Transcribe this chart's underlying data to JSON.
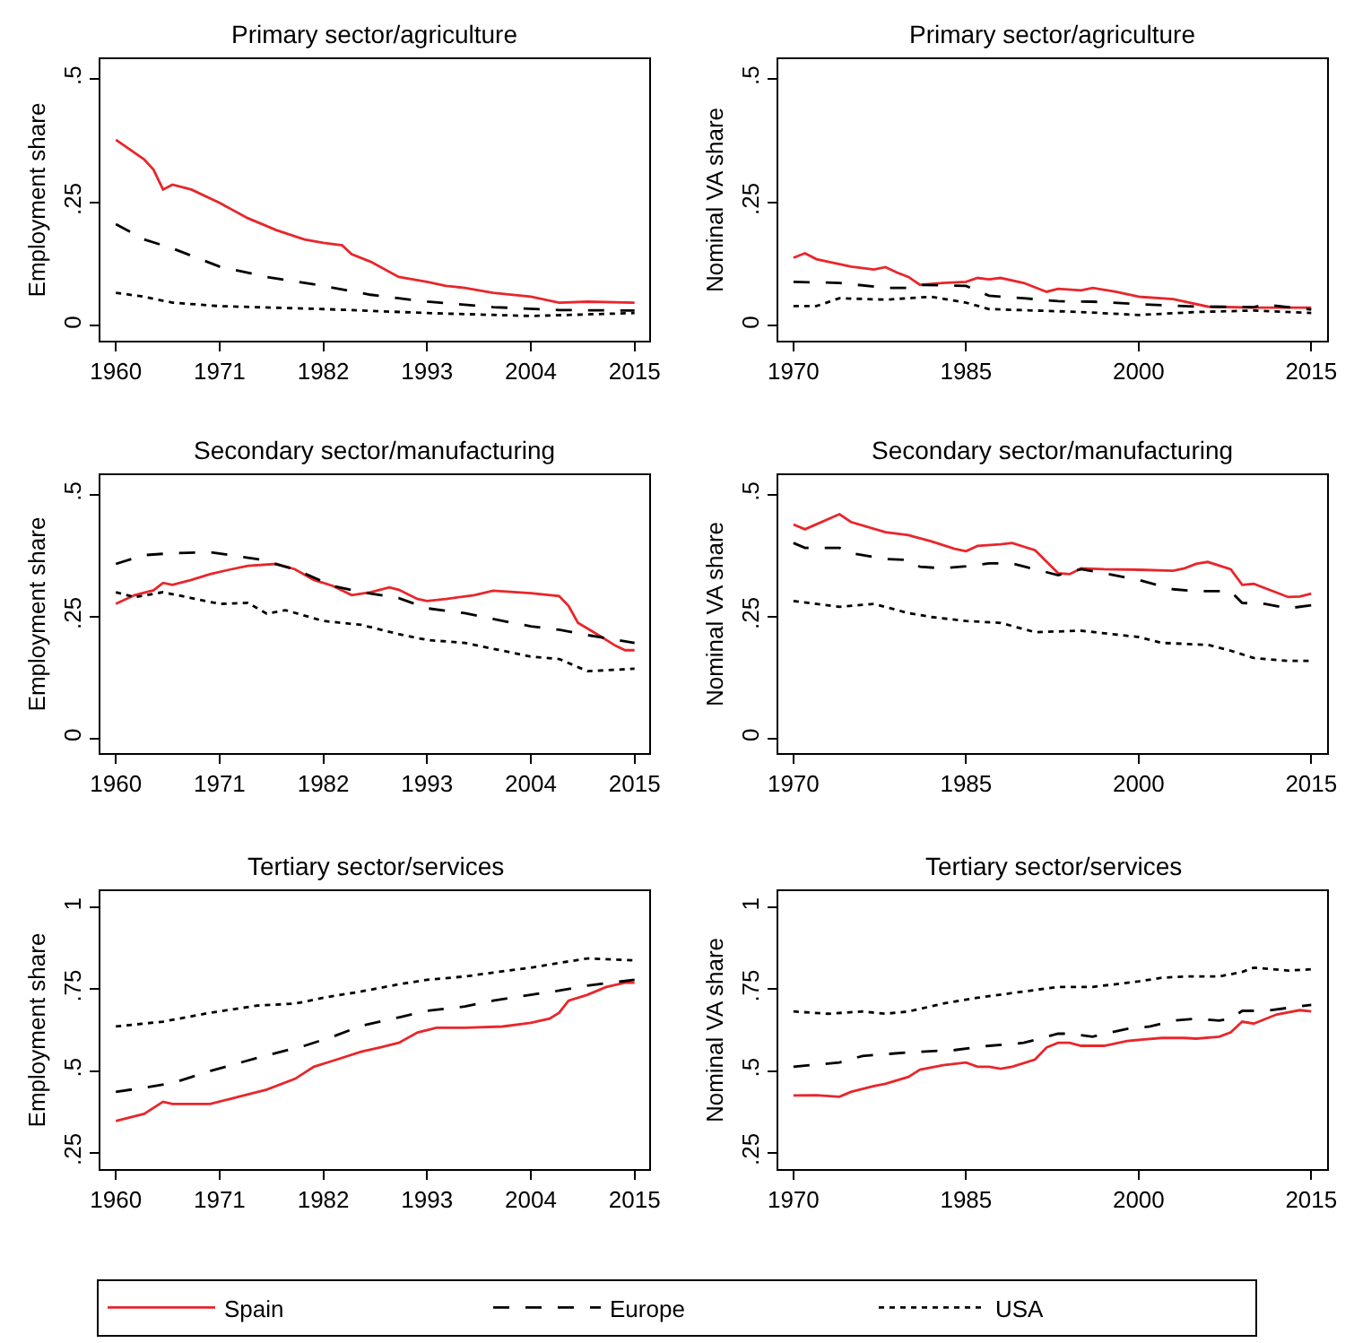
{
  "chart_data": [
    {
      "type": "line",
      "title": "Primary sector/agriculture",
      "ylabel": "Employment share",
      "xlim": [
        1958.4,
        2016.6
      ],
      "xticks": [
        1960,
        1971,
        1982,
        1993,
        2004,
        2015
      ],
      "ylim": [
        -0.03,
        0.54
      ],
      "yticks": [
        0,
        {
          "value": 0.25,
          "label": ".25"
        },
        {
          "value": 0.5,
          "label": ".5"
        }
      ],
      "legend": "bottom",
      "marker": "none",
      "series": [
        {
          "name": "Spain",
          "color": "#e8262b",
          "line_style": "solid",
          "x": [
            1960,
            1963,
            1964,
            1965,
            1966,
            1968,
            1971,
            1974,
            1977,
            1980,
            1982,
            1984,
            1985,
            1987,
            1990,
            1993,
            1995,
            1997,
            2000,
            2004,
            2007,
            2010,
            2015
          ],
          "values": [
            0.377,
            0.337,
            0.316,
            0.276,
            0.286,
            0.276,
            0.249,
            0.218,
            0.194,
            0.175,
            0.168,
            0.163,
            0.145,
            0.13,
            0.099,
            0.089,
            0.081,
            0.077,
            0.067,
            0.059,
            0.047,
            0.049,
            0.047
          ]
        },
        {
          "name": "Europe",
          "color": "#000000",
          "line_style": "dashed",
          "x": [
            1960,
            1963,
            1966,
            1971,
            1976,
            1982,
            1987,
            1993,
            2000,
            2007,
            2015
          ],
          "values": [
            0.206,
            0.175,
            0.157,
            0.12,
            0.099,
            0.081,
            0.063,
            0.049,
            0.038,
            0.032,
            0.031
          ]
        },
        {
          "name": "USA",
          "color": "#000000",
          "line_style": "dotted",
          "x": [
            1960,
            1963,
            1966,
            1971,
            1982,
            1993,
            2004,
            2015
          ],
          "values": [
            0.067,
            0.059,
            0.047,
            0.04,
            0.034,
            0.026,
            0.02,
            0.026
          ]
        }
      ]
    },
    {
      "type": "line",
      "title": "Primary sector/agriculture",
      "ylabel": "Nominal VA share",
      "xlim": [
        1968.7,
        2016.4
      ],
      "xticks": [
        1970,
        1985,
        2000,
        2015
      ],
      "ylim": [
        -0.03,
        0.54
      ],
      "yticks": [
        0,
        {
          "value": 0.25,
          "label": ".25"
        },
        {
          "value": 0.5,
          "label": ".5"
        }
      ],
      "marker": "none",
      "series": [
        {
          "color": "#e8262b",
          "line_style": "solid",
          "x": [
            1970,
            1971,
            1972,
            1975,
            1977,
            1978,
            1979,
            1980,
            1981,
            1983,
            1985,
            1986,
            1987,
            1988,
            1990,
            1992,
            1993,
            1995,
            1996,
            1998,
            2000,
            2003,
            2006,
            2010,
            2015
          ],
          "values": [
            0.138,
            0.147,
            0.135,
            0.12,
            0.114,
            0.119,
            0.108,
            0.099,
            0.083,
            0.087,
            0.089,
            0.097,
            0.094,
            0.097,
            0.087,
            0.069,
            0.075,
            0.072,
            0.077,
            0.069,
            0.059,
            0.054,
            0.039,
            0.037,
            0.037
          ]
        },
        {
          "color": "#000000",
          "line_style": "dashed",
          "x": [
            1970,
            1974,
            1978,
            1980,
            1981,
            1985,
            1987,
            1990,
            1993,
            1996,
            2000,
            2005,
            2010,
            2011,
            2015
          ],
          "values": [
            0.089,
            0.087,
            0.077,
            0.077,
            0.083,
            0.081,
            0.061,
            0.056,
            0.05,
            0.049,
            0.044,
            0.039,
            0.038,
            0.043,
            0.033
          ]
        },
        {
          "color": "#000000",
          "line_style": "dotted",
          "x": [
            1970,
            1972,
            1974,
            1978,
            1982,
            1985,
            1987,
            1995,
            2000,
            2005,
            2010,
            2015
          ],
          "values": [
            0.04,
            0.04,
            0.056,
            0.053,
            0.059,
            0.047,
            0.034,
            0.028,
            0.022,
            0.028,
            0.031,
            0.026
          ]
        }
      ]
    },
    {
      "type": "line",
      "title": "Secondary sector/manufacturing",
      "ylabel": "Employment share",
      "xlim": [
        1958.4,
        2016.6
      ],
      "xticks": [
        1960,
        1971,
        1982,
        1993,
        2004,
        2015
      ],
      "ylim": [
        -0.03,
        0.54
      ],
      "yticks": [
        0,
        {
          "value": 0.25,
          "label": ".25"
        },
        {
          "value": 0.5,
          "label": ".5"
        }
      ],
      "marker": "none",
      "series": [
        {
          "color": "#e8262b",
          "line_style": "solid",
          "x": [
            1960,
            1962,
            1964,
            1965,
            1966,
            1968,
            1970,
            1972,
            1974,
            1977,
            1979,
            1981,
            1983,
            1985,
            1987,
            1989,
            1990,
            1992,
            1993,
            1995,
            1998,
            2000,
            2004,
            2007,
            2008,
            2009,
            2011,
            2013,
            2014,
            2015
          ],
          "values": [
            0.276,
            0.294,
            0.304,
            0.319,
            0.315,
            0.325,
            0.337,
            0.346,
            0.354,
            0.358,
            0.347,
            0.325,
            0.313,
            0.294,
            0.3,
            0.31,
            0.305,
            0.286,
            0.282,
            0.286,
            0.294,
            0.303,
            0.298,
            0.292,
            0.272,
            0.237,
            0.214,
            0.19,
            0.181,
            0.181
          ]
        },
        {
          "color": "#000000",
          "line_style": "dashed",
          "x": [
            1960,
            1963,
            1966,
            1970,
            1975,
            1979,
            1983,
            1986,
            1990,
            1993,
            1997,
            2000,
            2004,
            2007,
            2010,
            2015
          ],
          "values": [
            0.358,
            0.376,
            0.38,
            0.382,
            0.368,
            0.347,
            0.313,
            0.3,
            0.288,
            0.267,
            0.257,
            0.245,
            0.23,
            0.223,
            0.212,
            0.196
          ]
        },
        {
          "color": "#000000",
          "line_style": "dotted",
          "x": [
            1960,
            1962,
            1965,
            1968,
            1971,
            1974,
            1976,
            1978,
            1982,
            1986,
            1990,
            1993,
            1997,
            2000,
            2004,
            2007,
            2010,
            2015
          ],
          "values": [
            0.3,
            0.29,
            0.3,
            0.288,
            0.276,
            0.278,
            0.256,
            0.263,
            0.241,
            0.233,
            0.214,
            0.202,
            0.196,
            0.184,
            0.168,
            0.163,
            0.138,
            0.143
          ]
        }
      ]
    },
    {
      "type": "line",
      "title": "Secondary sector/manufacturing",
      "ylabel": "Nominal VA share",
      "xlim": [
        1968.7,
        2016.4
      ],
      "xticks": [
        1970,
        1985,
        2000,
        2015
      ],
      "ylim": [
        -0.03,
        0.54
      ],
      "yticks": [
        0,
        {
          "value": 0.25,
          "label": ".25"
        },
        {
          "value": 0.5,
          "label": ".5"
        }
      ],
      "marker": "none",
      "series": [
        {
          "color": "#e8262b",
          "line_style": "solid",
          "x": [
            1970,
            1971,
            1974,
            1975,
            1978,
            1980,
            1982,
            1984,
            1985,
            1986,
            1988,
            1989,
            1991,
            1993,
            1994,
            1995,
            1997,
            2000,
            2003,
            2004,
            2005,
            2006,
            2008,
            2009,
            2010,
            2013,
            2014,
            2015
          ],
          "values": [
            0.439,
            0.429,
            0.46,
            0.444,
            0.423,
            0.417,
            0.404,
            0.389,
            0.384,
            0.395,
            0.398,
            0.401,
            0.386,
            0.339,
            0.337,
            0.349,
            0.347,
            0.346,
            0.344,
            0.349,
            0.358,
            0.362,
            0.347,
            0.315,
            0.317,
            0.29,
            0.291,
            0.297
          ]
        },
        {
          "color": "#000000",
          "line_style": "dashed",
          "x": [
            1970,
            1971,
            1974,
            1975,
            1978,
            1980,
            1981,
            1983,
            1985,
            1987,
            1989,
            1993,
            1995,
            1997,
            2000,
            2003,
            2005,
            2008,
            2009,
            2011,
            2013,
            2015
          ],
          "values": [
            0.401,
            0.391,
            0.391,
            0.38,
            0.368,
            0.366,
            0.352,
            0.349,
            0.353,
            0.359,
            0.359,
            0.335,
            0.347,
            0.339,
            0.325,
            0.306,
            0.302,
            0.302,
            0.278,
            0.276,
            0.267,
            0.273
          ]
        },
        {
          "color": "#000000",
          "line_style": "dotted",
          "x": [
            1970,
            1974,
            1977,
            1980,
            1982,
            1985,
            1988,
            1991,
            1995,
            2000,
            2002,
            2006,
            2008,
            2010,
            2013,
            2015
          ],
          "values": [
            0.282,
            0.27,
            0.276,
            0.257,
            0.249,
            0.241,
            0.237,
            0.218,
            0.221,
            0.208,
            0.196,
            0.192,
            0.18,
            0.165,
            0.159,
            0.159
          ]
        }
      ]
    },
    {
      "type": "line",
      "title": "Tertiary sector/services",
      "ylabel": "Employment share",
      "xlim": [
        1958.4,
        2016.6
      ],
      "xticks": [
        1960,
        1971,
        1982,
        1993,
        2004,
        2015
      ],
      "ylim": [
        0.2,
        1.05
      ],
      "yticks": [
        {
          "value": 0.25,
          "label": ".25"
        },
        {
          "value": 0.5,
          "label": ".5"
        },
        {
          "value": 0.75,
          "label": ".75"
        },
        1
      ],
      "marker": "none",
      "series": [
        {
          "color": "#e8262b",
          "line_style": "solid",
          "x": [
            1960,
            1963,
            1965,
            1966,
            1970,
            1973,
            1976,
            1979,
            1981,
            1983,
            1986,
            1988,
            1990,
            1992,
            1994,
            1997,
            2001,
            2004,
            2006,
            2007,
            2008,
            2010,
            2012,
            2014,
            2015
          ],
          "values": [
            0.347,
            0.369,
            0.406,
            0.399,
            0.399,
            0.421,
            0.443,
            0.476,
            0.513,
            0.531,
            0.559,
            0.572,
            0.586,
            0.618,
            0.632,
            0.632,
            0.636,
            0.647,
            0.66,
            0.678,
            0.715,
            0.733,
            0.757,
            0.77,
            0.77
          ]
        },
        {
          "color": "#000000",
          "line_style": "dashed",
          "x": [
            1960,
            1963,
            1966,
            1970,
            1975,
            1980,
            1983,
            1986,
            1990,
            1993,
            1997,
            2000,
            2004,
            2007,
            2010,
            2015
          ],
          "values": [
            0.436,
            0.449,
            0.463,
            0.5,
            0.54,
            0.577,
            0.605,
            0.638,
            0.664,
            0.684,
            0.697,
            0.715,
            0.733,
            0.746,
            0.761,
            0.779
          ]
        },
        {
          "color": "#000000",
          "line_style": "dotted",
          "x": [
            1960,
            1965,
            1970,
            1975,
            1979,
            1982,
            1986,
            1990,
            1993,
            1997,
            2000,
            2004,
            2008,
            2010,
            2015
          ],
          "values": [
            0.636,
            0.651,
            0.678,
            0.7,
            0.706,
            0.724,
            0.743,
            0.765,
            0.779,
            0.789,
            0.801,
            0.816,
            0.835,
            0.844,
            0.838
          ]
        }
      ]
    },
    {
      "type": "line",
      "title": "Tertiary sector/services",
      "ylabel": "Nominal VA share",
      "xlim": [
        1968.7,
        2016.4
      ],
      "xticks": [
        1970,
        1985,
        2000,
        2015
      ],
      "ylim": [
        0.2,
        1.05
      ],
      "yticks": [
        {
          "value": 0.25,
          "label": ".25"
        },
        {
          "value": 0.5,
          "label": ".5"
        },
        {
          "value": 0.75,
          "label": ".75"
        },
        1
      ],
      "marker": "none",
      "series": [
        {
          "color": "#e8262b",
          "line_style": "solid",
          "x": [
            1970,
            1972,
            1974,
            1975,
            1977,
            1978,
            1980,
            1981,
            1983,
            1985,
            1986,
            1987,
            1988,
            1989,
            1991,
            1992,
            1993,
            1994,
            1995,
            1997,
            1999,
            2002,
            2004,
            2005,
            2007,
            2008,
            2009,
            2010,
            2012,
            2014,
            2015
          ],
          "values": [
            0.425,
            0.426,
            0.421,
            0.436,
            0.454,
            0.461,
            0.482,
            0.504,
            0.518,
            0.526,
            0.513,
            0.513,
            0.507,
            0.513,
            0.535,
            0.572,
            0.586,
            0.586,
            0.577,
            0.577,
            0.592,
            0.601,
            0.601,
            0.599,
            0.605,
            0.618,
            0.651,
            0.645,
            0.673,
            0.686,
            0.682
          ]
        },
        {
          "color": "#000000",
          "line_style": "dashed",
          "x": [
            1970,
            1974,
            1976,
            1980,
            1984,
            1987,
            1990,
            1993,
            1994,
            1996,
            1999,
            2001,
            2003,
            2005,
            2007,
            2008,
            2009,
            2011,
            2015
          ],
          "values": [
            0.513,
            0.526,
            0.546,
            0.557,
            0.564,
            0.577,
            0.586,
            0.614,
            0.614,
            0.605,
            0.629,
            0.636,
            0.654,
            0.66,
            0.654,
            0.66,
            0.684,
            0.684,
            0.702
          ]
        },
        {
          "color": "#000000",
          "line_style": "dotted",
          "x": [
            1970,
            1973,
            1976,
            1978,
            1980,
            1983,
            1986,
            1990,
            1993,
            1996,
            2000,
            2002,
            2004,
            2007,
            2009,
            2010,
            2013,
            2015
          ],
          "values": [
            0.682,
            0.675,
            0.682,
            0.675,
            0.682,
            0.706,
            0.724,
            0.743,
            0.757,
            0.757,
            0.774,
            0.785,
            0.789,
            0.789,
            0.803,
            0.816,
            0.807,
            0.811
          ]
        }
      ]
    }
  ]
}
